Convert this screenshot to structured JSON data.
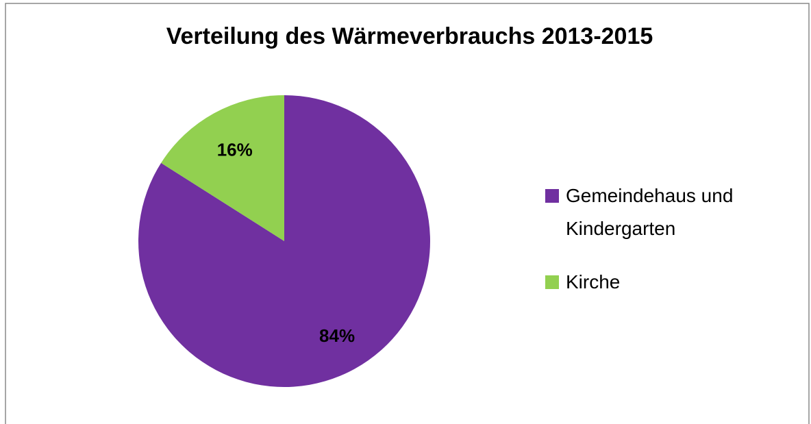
{
  "chart_data": {
    "type": "pie",
    "title": "Verteilung des Wärmeverbrauchs 2013-2015",
    "categories": [
      "Gemeindehaus und Kindergarten",
      "Kirche"
    ],
    "values": [
      84,
      16
    ],
    "value_labels": [
      "84%",
      "16%"
    ],
    "colors": [
      "#7030a0",
      "#92d050"
    ]
  }
}
